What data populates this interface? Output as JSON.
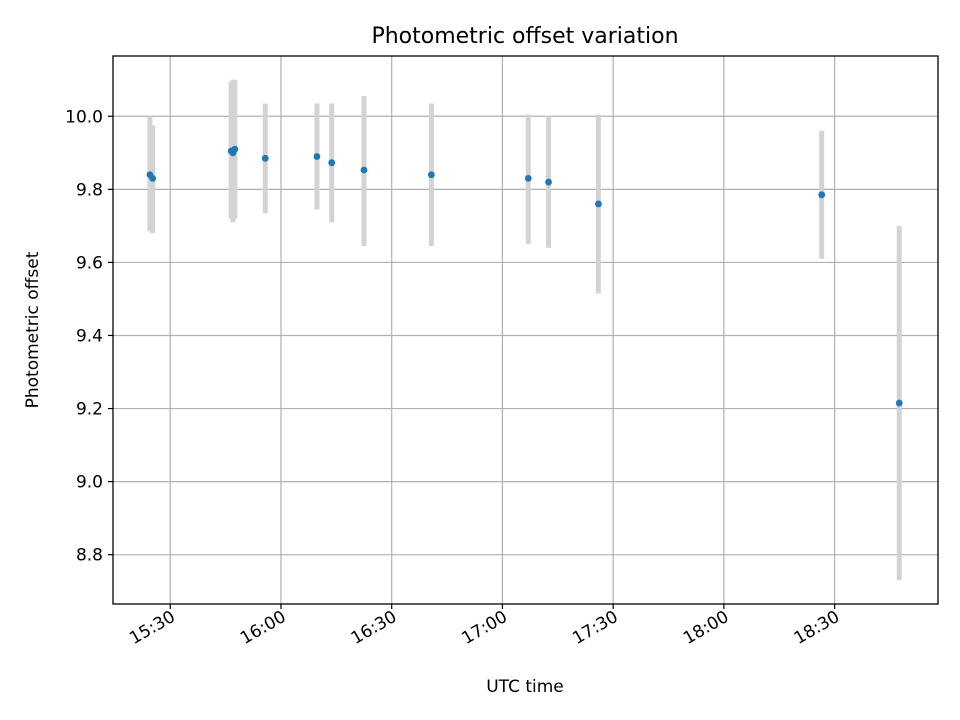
{
  "chart_data": {
    "type": "scatter",
    "title": "Photometric offset variation",
    "xlabel": "UTC time",
    "ylabel": "Photometric offset",
    "x_type": "time",
    "xlim": [
      "15:14:30",
      "18:58:00"
    ],
    "ylim": [
      8.665,
      10.165
    ],
    "x_ticks": [
      "15:30",
      "16:00",
      "16:30",
      "17:00",
      "17:30",
      "18:00",
      "18:30"
    ],
    "y_ticks": [
      "8.8",
      "9.0",
      "9.2",
      "9.4",
      "9.6",
      "9.8",
      "10.0"
    ],
    "grid": true,
    "colors": {
      "point": "#1f77b4",
      "errorbar": "#d3d3d3",
      "grid": "#b0b0b0"
    },
    "series": [
      {
        "points": [
          {
            "x": "15:24:30",
            "y": 9.84,
            "ylow": 9.685,
            "yhigh": 10.0
          },
          {
            "x": "15:25:15",
            "y": 9.83,
            "ylow": 9.68,
            "yhigh": 9.975
          },
          {
            "x": "15:46:30",
            "y": 9.905,
            "ylow": 9.72,
            "yhigh": 10.095
          },
          {
            "x": "15:47:00",
            "y": 9.9,
            "ylow": 9.71,
            "yhigh": 10.1
          },
          {
            "x": "15:47:30",
            "y": 9.91,
            "ylow": 9.72,
            "yhigh": 10.1
          },
          {
            "x": "15:55:45",
            "y": 9.885,
            "ylow": 9.735,
            "yhigh": 10.035
          },
          {
            "x": "16:09:45",
            "y": 9.89,
            "ylow": 9.745,
            "yhigh": 10.035
          },
          {
            "x": "16:13:45",
            "y": 9.873,
            "ylow": 9.71,
            "yhigh": 10.035
          },
          {
            "x": "16:22:30",
            "y": 9.853,
            "ylow": 9.645,
            "yhigh": 10.055
          },
          {
            "x": "16:40:45",
            "y": 9.84,
            "ylow": 9.645,
            "yhigh": 10.035
          },
          {
            "x": "17:07:00",
            "y": 9.83,
            "ylow": 9.65,
            "yhigh": 10.005
          },
          {
            "x": "17:12:30",
            "y": 9.82,
            "ylow": 9.64,
            "yhigh": 10.0
          },
          {
            "x": "17:26:00",
            "y": 9.76,
            "ylow": 9.515,
            "yhigh": 10.005
          },
          {
            "x": "18:26:30",
            "y": 9.785,
            "ylow": 9.61,
            "yhigh": 9.96
          },
          {
            "x": "18:47:30",
            "y": 9.215,
            "ylow": 8.73,
            "yhigh": 9.7
          }
        ]
      }
    ]
  }
}
